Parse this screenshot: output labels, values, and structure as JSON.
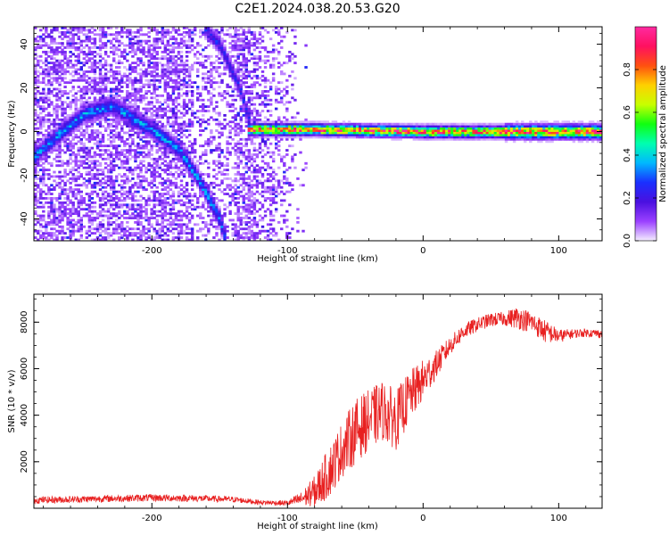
{
  "title": "C2E1.2024.038.20.53.G20",
  "colors": {
    "snr_line": "#e82020",
    "frame": "#000000"
  },
  "chart_data": [
    {
      "type": "heatmap",
      "xlabel": "Height of straight line (km)",
      "ylabel": "Frequency (Hz)",
      "xlim": [
        -287,
        132
      ],
      "ylim": [
        -50,
        48
      ],
      "xticks": [
        -200,
        -100,
        0,
        100
      ],
      "xtick_labels": [
        "-200",
        "-100",
        "0",
        "100"
      ],
      "yticks": [
        -40,
        -20,
        0,
        20,
        40
      ],
      "ytick_labels": [
        "-40",
        "-20",
        "0",
        "20",
        "40"
      ],
      "colorbar": {
        "label": "Normalized spectral amplitude",
        "range": [
          0,
          1
        ],
        "ticks": [
          0.0,
          0.2,
          0.4,
          0.6,
          0.8
        ],
        "tick_labels": [
          "0.0",
          "0.2",
          "0.4",
          "0.6",
          "0.8"
        ],
        "colormap": [
          "#f4eeff",
          "#9a40ff",
          "#4a10e0",
          "#1a30ff",
          "#00b8ff",
          "#00ffb0",
          "#10ff10",
          "#c8ff00",
          "#ffd000",
          "#ff5010",
          "#ff1060",
          "#ff2aa0"
        ]
      },
      "features": [
        {
          "name": "main tone",
          "points": [
            [
              -287,
              -12
            ],
            [
              -270,
              -2
            ],
            [
              -250,
              8
            ],
            [
              -230,
              12
            ],
            [
              -215,
              7
            ],
            [
              -200,
              1
            ],
            [
              -180,
              -8
            ],
            [
              -165,
              -22
            ],
            [
              -150,
              -40
            ],
            [
              -145,
              -50
            ]
          ],
          "amplitude": 0.35
        },
        {
          "name": "steep branch",
          "points": [
            [
              -162,
              48
            ],
            [
              -150,
              40
            ],
            [
              -135,
              20
            ],
            [
              -128,
              5
            ]
          ],
          "amplitude": 0.25
        },
        {
          "name": "carrier",
          "points": [
            [
              -130,
              1
            ],
            [
              -80,
              1
            ],
            [
              -40,
              0.5
            ],
            [
              0,
              0
            ],
            [
              60,
              0
            ],
            [
              132,
              0
            ]
          ],
          "amplitude": 0.9
        }
      ]
    },
    {
      "type": "line",
      "xlabel": "Height of straight line (km)",
      "ylabel": "SNR (10 * v/v)",
      "xlim": [
        -287,
        132
      ],
      "ylim": [
        0,
        9200
      ],
      "xticks": [
        -200,
        -100,
        0,
        100
      ],
      "xtick_labels": [
        "-200",
        "-100",
        "0",
        "100"
      ],
      "yticks": [
        2000,
        4000,
        6000,
        8000
      ],
      "ytick_labels": [
        "2000",
        "4000",
        "6000",
        "8000"
      ],
      "series": [
        {
          "x": [
            -287,
            -260,
            -230,
            -200,
            -170,
            -140,
            -120,
            -100,
            -90,
            -80,
            -70,
            -60,
            -50,
            -40,
            -30,
            -20,
            -10,
            0,
            10,
            20,
            30,
            40,
            50,
            60,
            70,
            80,
            90,
            100,
            110,
            120,
            132
          ],
          "y": [
            350,
            380,
            420,
            450,
            430,
            380,
            250,
            220,
            400,
            700,
            1500,
            2500,
            3300,
            3800,
            4200,
            3800,
            4800,
            5500,
            6200,
            7000,
            7600,
            7900,
            8100,
            8150,
            8200,
            8000,
            7600,
            7400,
            7500,
            7550,
            7500
          ],
          "noise_amplitude": [
            150,
            150,
            150,
            160,
            150,
            130,
            100,
            120,
            300,
            700,
            1100,
            1200,
            1400,
            1300,
            1300,
            1300,
            1100,
            900,
            600,
            400,
            350,
            300,
            300,
            300,
            500,
            450,
            500,
            300,
            200,
            180,
            180
          ]
        }
      ]
    }
  ]
}
